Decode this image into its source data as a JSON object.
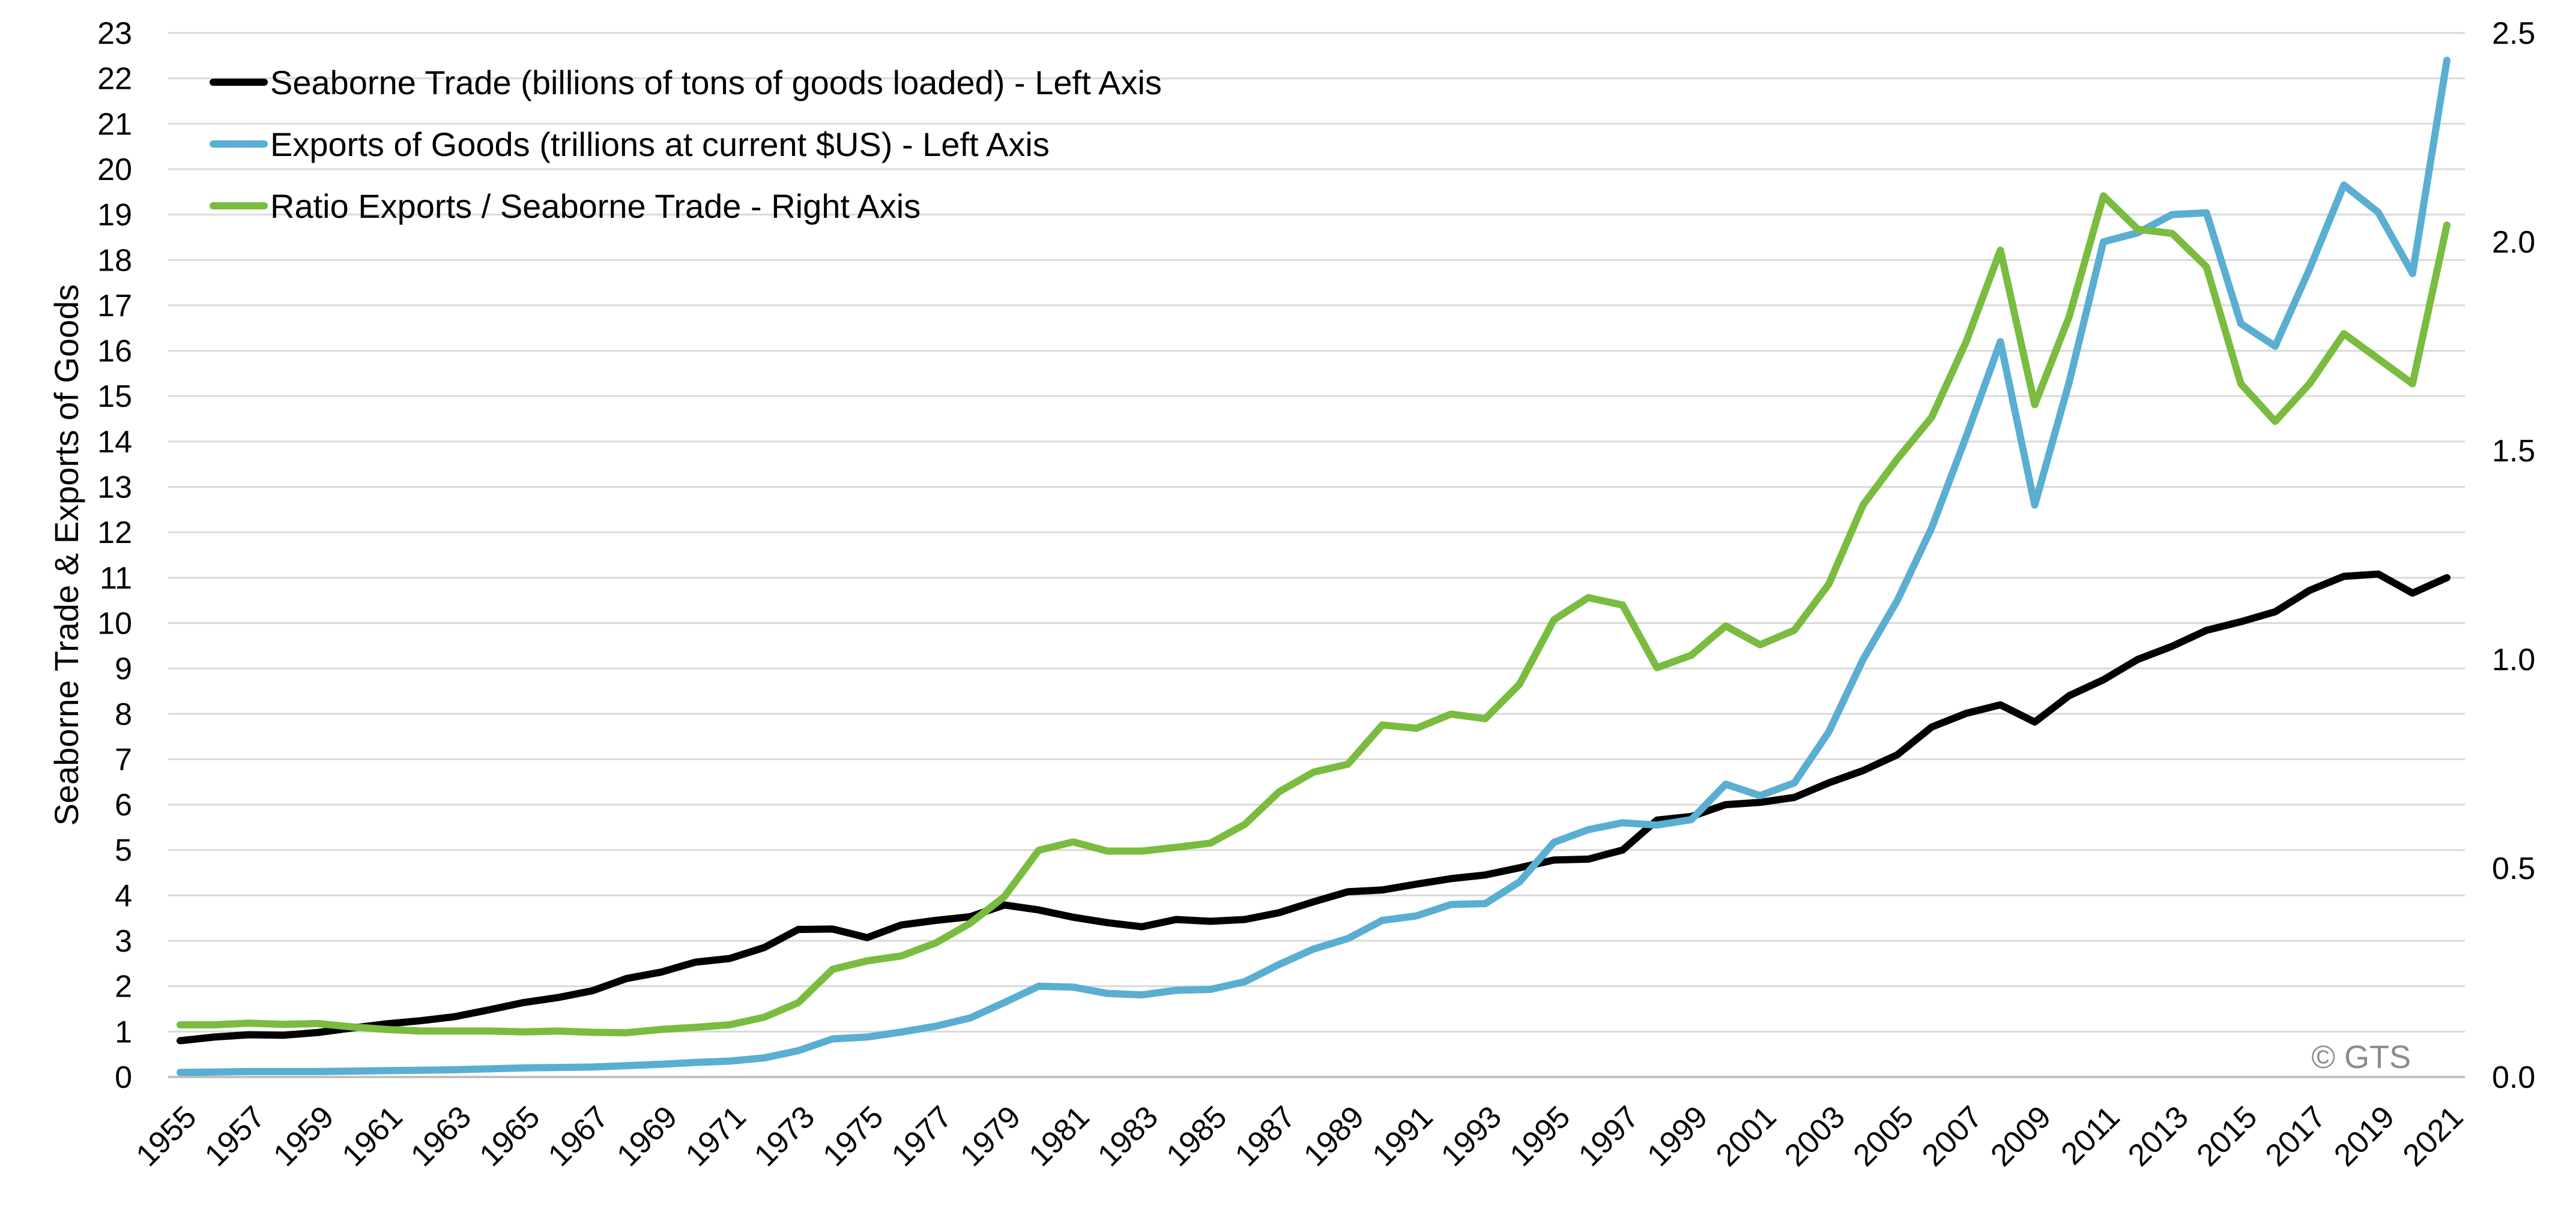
{
  "chart_data": {
    "type": "line",
    "title": "",
    "ylabel": "Seaborne Trade & Exports of Goods",
    "ylabel_right": "",
    "xlabel": "",
    "ylim": [
      0,
      23
    ],
    "ylim_right": [
      0,
      2.5
    ],
    "yticks": [
      0,
      1,
      2,
      3,
      4,
      5,
      6,
      7,
      8,
      9,
      10,
      11,
      12,
      13,
      14,
      15,
      16,
      17,
      18,
      19,
      20,
      21,
      22,
      23
    ],
    "yticks_right": [
      "0.0",
      "0.5",
      "1.0",
      "1.5",
      "2.0",
      "2.5"
    ],
    "grid": true,
    "legend_position": "top-left",
    "watermark": "© GTS",
    "x": [
      1955,
      1956,
      1957,
      1958,
      1959,
      1960,
      1961,
      1962,
      1963,
      1964,
      1965,
      1966,
      1967,
      1968,
      1969,
      1970,
      1971,
      1972,
      1973,
      1974,
      1975,
      1976,
      1977,
      1978,
      1979,
      1980,
      1981,
      1982,
      1983,
      1984,
      1985,
      1986,
      1987,
      1988,
      1989,
      1990,
      1991,
      1992,
      1993,
      1994,
      1995,
      1996,
      1997,
      1998,
      1999,
      2000,
      2001,
      2002,
      2003,
      2004,
      2005,
      2006,
      2007,
      2008,
      2009,
      2010,
      2011,
      2012,
      2013,
      2014,
      2015,
      2016,
      2017,
      2018,
      2019,
      2020,
      2021
    ],
    "x_tick_labels": [
      "1955",
      "1957",
      "1959",
      "1961",
      "1963",
      "1965",
      "1967",
      "1969",
      "1971",
      "1973",
      "1975",
      "1977",
      "1979",
      "1981",
      "1983",
      "1985",
      "1987",
      "1989",
      "1991",
      "1993",
      "1995",
      "1997",
      "1999",
      "2001",
      "2003",
      "2005",
      "2007",
      "2009",
      "2011",
      "2013",
      "2015",
      "2017",
      "2019",
      "2021"
    ],
    "series": [
      {
        "name": "Seaborne Trade (billions of tons of goods loaded) - Left Axis",
        "axis": "left",
        "color": "#000000",
        "values": [
          0.8,
          0.88,
          0.93,
          0.92,
          0.98,
          1.08,
          1.17,
          1.24,
          1.33,
          1.48,
          1.64,
          1.75,
          1.9,
          2.17,
          2.31,
          2.53,
          2.61,
          2.85,
          3.25,
          3.26,
          3.07,
          3.35,
          3.45,
          3.53,
          3.79,
          3.68,
          3.52,
          3.4,
          3.31,
          3.47,
          3.43,
          3.47,
          3.62,
          3.86,
          4.08,
          4.12,
          4.25,
          4.37,
          4.45,
          4.61,
          4.78,
          4.8,
          5.0,
          5.66,
          5.74,
          6.0,
          6.05,
          6.16,
          6.48,
          6.75,
          7.1,
          7.71,
          8.01,
          8.2,
          7.82,
          8.4,
          8.75,
          9.2,
          9.49,
          9.84,
          10.03,
          10.25,
          10.72,
          11.03,
          11.08,
          10.66,
          11.0
        ]
      },
      {
        "name": "Exports of Goods (trillions at current $US) - Left Axis",
        "axis": "left",
        "color": "#5aaed1",
        "values": [
          0.1,
          0.11,
          0.12,
          0.12,
          0.12,
          0.13,
          0.14,
          0.15,
          0.16,
          0.18,
          0.2,
          0.21,
          0.22,
          0.25,
          0.28,
          0.32,
          0.35,
          0.42,
          0.58,
          0.84,
          0.88,
          0.99,
          1.12,
          1.3,
          1.64,
          2.0,
          1.98,
          1.84,
          1.81,
          1.91,
          1.93,
          2.1,
          2.48,
          2.82,
          3.05,
          3.45,
          3.55,
          3.8,
          3.82,
          4.3,
          5.17,
          5.45,
          5.6,
          5.55,
          5.67,
          6.45,
          6.2,
          6.48,
          7.6,
          9.2,
          10.5,
          12.1,
          14.1,
          16.2,
          12.6,
          15.3,
          18.4,
          18.6,
          19.0,
          19.04,
          16.6,
          16.1,
          17.8,
          19.65,
          19.05,
          17.7,
          22.4
        ]
      },
      {
        "name": "Ratio Exports / Seaborne Trade - Right Axis",
        "axis": "right",
        "color": "#79bc3f",
        "values": [
          0.125,
          0.125,
          0.129,
          0.126,
          0.128,
          0.12,
          0.114,
          0.11,
          0.11,
          0.11,
          0.108,
          0.11,
          0.107,
          0.106,
          0.114,
          0.119,
          0.125,
          0.143,
          0.178,
          0.258,
          0.278,
          0.29,
          0.321,
          0.368,
          0.432,
          0.543,
          0.563,
          0.541,
          0.541,
          0.55,
          0.56,
          0.605,
          0.683,
          0.73,
          0.749,
          0.843,
          0.835,
          0.869,
          0.858,
          0.941,
          1.095,
          1.148,
          1.13,
          0.98,
          1.01,
          1.08,
          1.035,
          1.07,
          1.18,
          1.37,
          1.48,
          1.58,
          1.76,
          1.98,
          1.61,
          1.82,
          2.11,
          2.03,
          2.02,
          1.94,
          1.66,
          1.57,
          1.66,
          1.78,
          1.72,
          1.66,
          2.04
        ]
      }
    ]
  }
}
